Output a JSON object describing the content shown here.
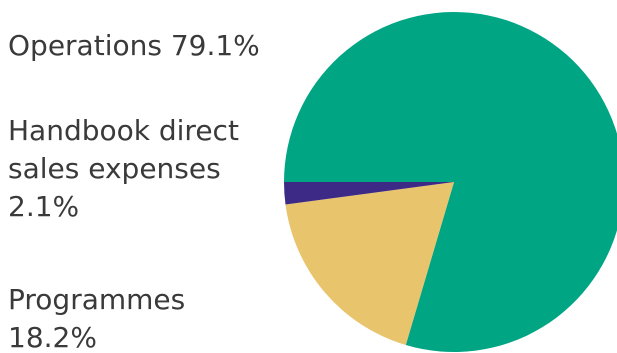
{
  "chart_data": {
    "type": "pie",
    "slices": [
      {
        "label": "Operations",
        "value": 79.1,
        "value_label": "79.1%",
        "color": "#00a584"
      },
      {
        "label": "Handbook direct sales expenses",
        "value": 2.1,
        "value_label": "2.1%",
        "color": "#3c2a86"
      },
      {
        "label": "Programmes",
        "value": 18.2,
        "value_label": "18.2%",
        "color": "#e8c46c"
      }
    ],
    "labels": {
      "operations": [
        "Operations 79.1%"
      ],
      "handbook": [
        "Handbook direct",
        "sales expenses",
        "2.1%"
      ],
      "programmes": [
        "Programmes",
        "18.2%"
      ]
    }
  }
}
